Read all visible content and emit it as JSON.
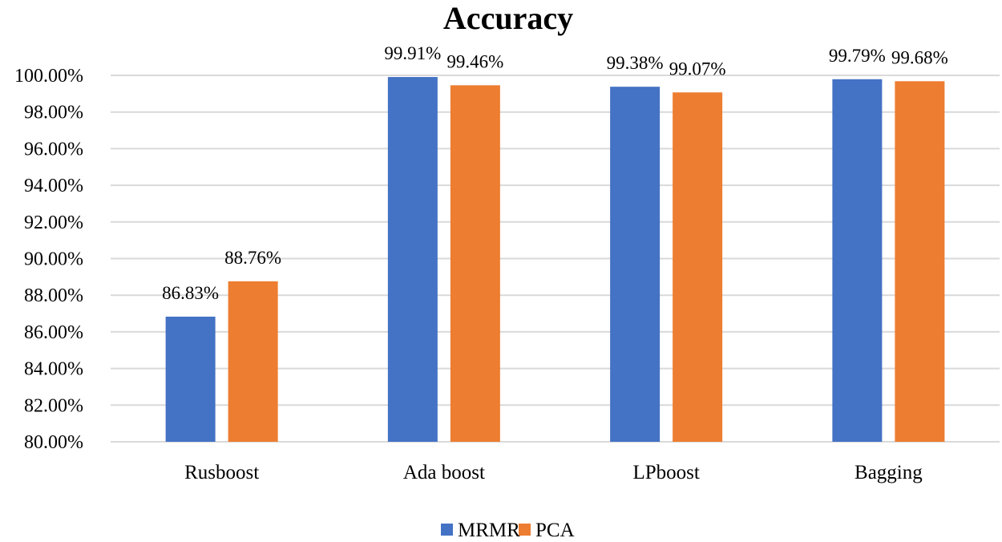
{
  "chart_data": {
    "type": "bar",
    "title": "Accuracy",
    "xlabel": "",
    "ylabel": "",
    "categories": [
      "Rusboost",
      "Ada boost",
      "LPboost",
      "Bagging"
    ],
    "series": [
      {
        "name": "MRMR",
        "color": "#4472c4",
        "values": [
          86.83,
          99.91,
          99.38,
          99.79
        ],
        "labels": [
          "86.83%",
          "99.91%",
          "99.38%",
          "99.79%"
        ]
      },
      {
        "name": "PCA",
        "color": "#ed7d31",
        "values": [
          88.76,
          99.46,
          99.07,
          99.68
        ],
        "labels": [
          "88.76%",
          "99.46%",
          "99.07%",
          "99.68%"
        ]
      }
    ],
    "ylim": [
      80,
      100
    ],
    "yticks": [
      80,
      82,
      84,
      86,
      88,
      90,
      92,
      94,
      96,
      98,
      100
    ],
    "ytick_labels": [
      "80.00%",
      "82.00%",
      "84.00%",
      "86.00%",
      "88.00%",
      "90.00%",
      "92.00%",
      "94.00%",
      "96.00%",
      "98.00%",
      "100.00%"
    ],
    "grid": true,
    "legend_position": "bottom"
  }
}
